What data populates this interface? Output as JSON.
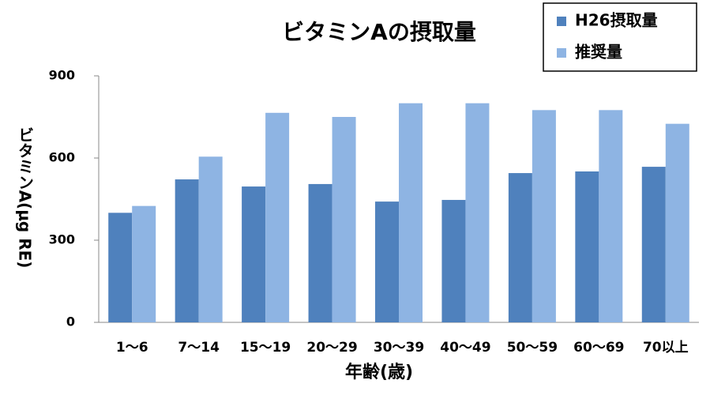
{
  "chart_data": {
    "type": "bar",
    "title": "ビタミンAの摂取量",
    "x_label": "年齢(歳)",
    "y_label": "ビタミンA(μg RE)",
    "categories": [
      "1～6",
      "7～14",
      "15～19",
      "20～29",
      "30～39",
      "40～49",
      "50～59",
      "60～69",
      "70以上"
    ],
    "series": [
      {
        "name": "H26摂取量",
        "color": "#4f81bd",
        "values": [
          400,
          522,
          496,
          505,
          441,
          447,
          545,
          551,
          568
        ]
      },
      {
        "name": "推奨量",
        "color": "#8eb4e3",
        "values": [
          425,
          605,
          765,
          750,
          800,
          800,
          775,
          775,
          725
        ]
      }
    ],
    "ylim": [
      0,
      900
    ],
    "yticks": [
      0,
      300,
      600,
      900
    ],
    "legend": "upper right"
  }
}
